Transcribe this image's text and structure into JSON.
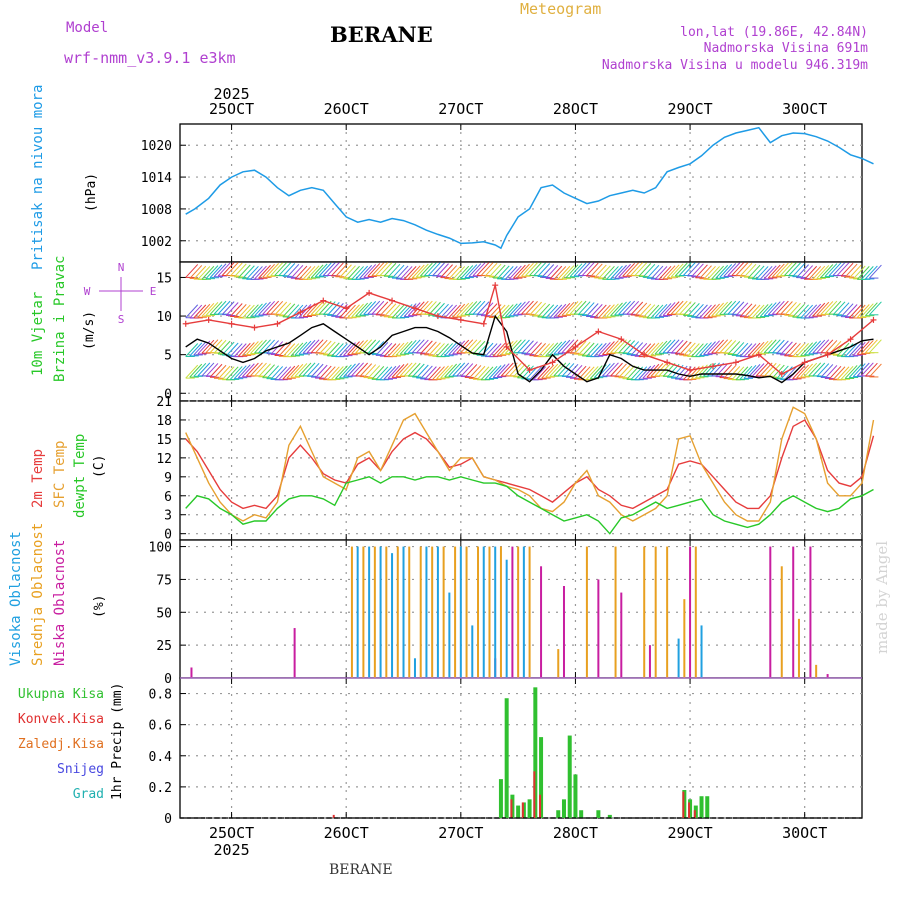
{
  "header": {
    "model_label": "Model",
    "model_name": "wrf-nmm_v3.9.1 e3km",
    "station": "BERANE",
    "title": "Meteogram",
    "lonlat": "lon,lat (19.86E, 42.84N)",
    "elev": "Nadmorska Visina 691m",
    "elev_model": "Nadmorska Visina u modelu 946.319m",
    "footer_station": "BERANE",
    "watermark": "made by Angel"
  },
  "colors": {
    "pressure": "#1e9be6",
    "temp2m": "#e63c3c",
    "sfc": "#e6a030",
    "dew": "#28c828",
    "high_cloud": "#20a0e0",
    "mid_cloud": "#e8a020",
    "low_cloud": "#c81ea0",
    "total_precip": "#30c030",
    "conv_precip": "#e03030",
    "frz_precip": "#e07020",
    "snow": "#4848e0",
    "hail": "#20b0b0",
    "label_purple": "#b040d0",
    "label_gold": "#e0b040"
  },
  "chart_data": [
    {
      "id": "pressure",
      "type": "line",
      "title": "Pritisak na nivou mora",
      "ylabel": "(hPa)",
      "ylim": [
        998,
        1024
      ],
      "yticks": [
        1002,
        1008,
        1014,
        1020
      ],
      "x_days": [
        25,
        26,
        27,
        28,
        29,
        30
      ],
      "x_tick_labels_top": [
        "25OCT",
        "26OCT",
        "27OCT",
        "28OCT",
        "29OCT",
        "30OCT"
      ],
      "year": "2025",
      "series": [
        {
          "name": "MSLP",
          "x": [
            0,
            0.08,
            0.2,
            0.3,
            0.4,
            0.5,
            0.6,
            0.7,
            0.8,
            0.9,
            1.0,
            1.1,
            1.2,
            1.3,
            1.4,
            1.5,
            1.6,
            1.7,
            1.8,
            1.9,
            2.0,
            2.1,
            2.2,
            2.3,
            2.4,
            2.5,
            2.6,
            2.7,
            2.75,
            2.8,
            2.9,
            3.0,
            3.1,
            3.2,
            3.3,
            3.4,
            3.5,
            3.6,
            3.7,
            3.8,
            3.9,
            4.0,
            4.1,
            4.2,
            4.3,
            4.4,
            4.5,
            4.6,
            4.7,
            4.8,
            4.9,
            5.0,
            5.1,
            5.2,
            5.3,
            5.4,
            5.5,
            5.6,
            5.7,
            5.8,
            5.9,
            6.0
          ],
          "values": [
            1007,
            1008,
            1010,
            1012.5,
            1014,
            1015,
            1015.3,
            1014,
            1012,
            1010.5,
            1011.5,
            1012,
            1011.5,
            1009,
            1006.5,
            1005.5,
            1006,
            1005.5,
            1006.2,
            1005.8,
            1005,
            1004,
            1003.2,
            1002.5,
            1001.5,
            1001.6,
            1001.8,
            1001.2,
            1000.6,
            1003,
            1006.5,
            1008,
            1012,
            1012.5,
            1011,
            1010,
            1009,
            1009.5,
            1010.5,
            1011,
            1011.5,
            1011,
            1012,
            1015,
            1015.8,
            1016.5,
            1018,
            1020,
            1021.5,
            1022.3,
            1022.8,
            1023.3,
            1020.5,
            1021.8,
            1022.3,
            1022.2,
            1021.6,
            1020.8,
            1019.6,
            1018.2,
            1017.5,
            1016.5
          ]
        }
      ]
    },
    {
      "id": "wind",
      "type": "line",
      "title_lines": [
        "10m Vjetar",
        "Brzina i Pravac"
      ],
      "ylabel": "(m/s)",
      "compass": [
        "N",
        "W",
        "E",
        "S"
      ],
      "ylim": [
        -1,
        17
      ],
      "yticks": [
        0,
        5,
        10,
        15
      ],
      "series": [
        {
          "name": "speed",
          "color": "#000000",
          "x": [
            0,
            0.1,
            0.2,
            0.3,
            0.4,
            0.5,
            0.6,
            0.7,
            0.8,
            0.9,
            1.0,
            1.1,
            1.2,
            1.3,
            1.4,
            1.5,
            1.6,
            1.7,
            1.8,
            1.9,
            2.0,
            2.1,
            2.2,
            2.3,
            2.4,
            2.5,
            2.6,
            2.7,
            2.8,
            2.9,
            3.0,
            3.1,
            3.2,
            3.3,
            3.4,
            3.5,
            3.6,
            3.7,
            3.8,
            3.9,
            4.0,
            4.1,
            4.2,
            4.3,
            4.4,
            4.5,
            4.6,
            4.7,
            4.8,
            4.9,
            5.0,
            5.1,
            5.2,
            5.3,
            5.4,
            5.5,
            5.6,
            5.7,
            5.8,
            5.9,
            6.0
          ],
          "values": [
            6,
            7,
            6.5,
            5.5,
            4.5,
            4,
            4.5,
            5.5,
            6,
            6.5,
            7.5,
            8.5,
            9,
            8,
            7,
            6,
            5,
            6,
            7.5,
            8,
            8.5,
            8.5,
            8,
            7.2,
            6.2,
            5.2,
            5,
            10,
            8,
            2.5,
            1.5,
            3,
            5,
            3.5,
            2.5,
            1.5,
            2,
            5,
            4.5,
            3.5,
            3,
            3,
            3,
            2.5,
            2.2,
            2.5,
            2.5,
            2.5,
            2.5,
            2.3,
            2,
            2.2,
            1.4,
            2.5,
            4,
            4.5,
            5,
            5.5,
            6,
            6.8,
            7
          ]
        },
        {
          "name": "gust",
          "color": "#e63c3c",
          "x": [
            0,
            0.2,
            0.4,
            0.6,
            0.8,
            1.0,
            1.2,
            1.4,
            1.6,
            1.8,
            2.0,
            2.2,
            2.4,
            2.6,
            2.7,
            2.8,
            3.0,
            3.2,
            3.4,
            3.6,
            3.8,
            4.0,
            4.2,
            4.4,
            4.6,
            4.8,
            5.0,
            5.2,
            5.4,
            5.6,
            5.8,
            6.0
          ],
          "values": [
            9,
            9.5,
            9,
            8.5,
            9,
            10.5,
            12,
            11,
            13,
            12,
            11,
            10,
            9.5,
            9,
            14,
            6,
            3,
            4,
            6,
            8,
            7,
            5,
            4,
            3,
            3.5,
            4,
            5,
            2.5,
            4,
            5,
            7,
            9.5
          ]
        }
      ]
    },
    {
      "id": "temperature",
      "type": "line",
      "title_lines": [
        "2m Temp",
        "SFC Temp",
        "dewpt Temp"
      ],
      "ylabel": "(C)",
      "ylim": [
        -1,
        21
      ],
      "yticks": [
        0,
        3,
        6,
        9,
        12,
        15,
        18,
        21
      ],
      "series": [
        {
          "name": "2m Temp",
          "x": [
            0,
            0.1,
            0.2,
            0.3,
            0.4,
            0.5,
            0.6,
            0.7,
            0.8,
            0.9,
            1.0,
            1.1,
            1.2,
            1.3,
            1.4,
            1.5,
            1.6,
            1.7,
            1.8,
            1.9,
            2.0,
            2.1,
            2.2,
            2.3,
            2.4,
            2.5,
            2.6,
            2.7,
            2.8,
            2.9,
            3.0,
            3.1,
            3.2,
            3.3,
            3.4,
            3.5,
            3.6,
            3.7,
            3.8,
            3.9,
            4.0,
            4.1,
            4.2,
            4.3,
            4.4,
            4.5,
            4.6,
            4.7,
            4.8,
            4.9,
            5.0,
            5.1,
            5.2,
            5.3,
            5.4,
            5.5,
            5.6,
            5.7,
            5.8,
            5.9,
            6.0
          ],
          "values": [
            15,
            13,
            10,
            7,
            5,
            4,
            4.5,
            4,
            6,
            12,
            14,
            12,
            9.5,
            8.5,
            8,
            11,
            12,
            10,
            13,
            15,
            16,
            15,
            13,
            10.5,
            11,
            12,
            9,
            8.5,
            8,
            7.5,
            7,
            6,
            5,
            6.5,
            8,
            9,
            7,
            6,
            4.5,
            4,
            5,
            6,
            7,
            11,
            11.5,
            11,
            9,
            7,
            5,
            4,
            4,
            6,
            12,
            17,
            18,
            15,
            10,
            8,
            7.5,
            9,
            15.5
          ]
        },
        {
          "name": "SFC Temp",
          "x": [
            0,
            0.1,
            0.2,
            0.3,
            0.4,
            0.5,
            0.6,
            0.7,
            0.8,
            0.9,
            1.0,
            1.1,
            1.2,
            1.3,
            1.4,
            1.5,
            1.6,
            1.7,
            1.8,
            1.9,
            2.0,
            2.1,
            2.2,
            2.3,
            2.4,
            2.5,
            2.6,
            2.7,
            2.8,
            2.9,
            3.0,
            3.1,
            3.2,
            3.3,
            3.4,
            3.5,
            3.6,
            3.7,
            3.8,
            3.9,
            4.0,
            4.1,
            4.2,
            4.3,
            4.4,
            4.5,
            4.6,
            4.7,
            4.8,
            4.9,
            5.0,
            5.1,
            5.2,
            5.3,
            5.4,
            5.5,
            5.6,
            5.7,
            5.8,
            5.9,
            6.0
          ],
          "values": [
            16,
            12,
            8,
            5,
            3,
            2,
            3,
            2.5,
            5,
            14,
            17,
            13,
            9,
            8,
            7,
            12,
            13,
            10,
            14,
            18,
            19,
            16,
            13,
            10,
            12,
            12,
            9,
            8.5,
            7.5,
            7,
            6,
            4,
            3.5,
            5,
            8,
            10,
            6,
            5,
            3,
            2,
            3,
            4,
            6,
            15,
            15.5,
            11,
            8,
            5,
            3,
            2,
            2,
            5,
            15,
            20,
            19,
            15,
            8,
            6,
            6,
            8,
            18
          ]
        },
        {
          "name": "dewpt Temp",
          "x": [
            0,
            0.1,
            0.2,
            0.3,
            0.4,
            0.5,
            0.6,
            0.7,
            0.8,
            0.9,
            1.0,
            1.1,
            1.2,
            1.3,
            1.4,
            1.5,
            1.6,
            1.7,
            1.8,
            1.9,
            2.0,
            2.1,
            2.2,
            2.3,
            2.4,
            2.5,
            2.6,
            2.7,
            2.8,
            2.9,
            3.0,
            3.1,
            3.2,
            3.3,
            3.4,
            3.5,
            3.6,
            3.7,
            3.8,
            3.9,
            4.0,
            4.1,
            4.2,
            4.3,
            4.4,
            4.5,
            4.6,
            4.7,
            4.8,
            4.9,
            5.0,
            5.1,
            5.2,
            5.3,
            5.4,
            5.5,
            5.6,
            5.7,
            5.8,
            5.9,
            6.0
          ],
          "values": [
            4,
            6,
            5.5,
            4,
            3,
            1.5,
            2,
            2,
            4,
            5.5,
            6,
            6,
            5.5,
            4.5,
            8,
            8.5,
            9,
            8,
            9,
            9,
            8.5,
            9,
            9,
            8.5,
            9,
            8.5,
            8,
            8,
            7.5,
            6,
            5,
            4,
            3,
            2,
            2.5,
            3,
            2,
            0,
            2.5,
            3,
            4,
            5,
            4,
            4.5,
            5,
            5.5,
            3,
            2,
            1.5,
            1,
            1.5,
            3,
            5,
            6,
            5,
            4,
            3.5,
            4,
            5.5,
            6,
            7
          ]
        }
      ]
    },
    {
      "id": "clouds",
      "type": "bar",
      "title_lines": [
        "Visoka Oblacnost",
        "Srednja Oblacnost",
        "Niska Oblacnost"
      ],
      "ylabel": "(%)",
      "ylim": [
        0,
        105
      ],
      "yticks": [
        0,
        25,
        50,
        75,
        100
      ],
      "series": [
        {
          "name": "Niska Oblacnost",
          "x": [
            0.05,
            0.95,
            2.7,
            2.85,
            3.1,
            3.3,
            3.6,
            3.8,
            4.05,
            4.4,
            5.1,
            5.3,
            5.45,
            5.6,
            6.0
          ],
          "values": [
            8,
            38,
            15,
            100,
            85,
            70,
            75,
            65,
            25,
            100,
            100,
            100,
            100,
            3,
            0
          ]
        },
        {
          "name": "Srednja Oblacnost",
          "x": [
            1.45,
            1.55,
            1.65,
            1.75,
            1.85,
            1.95,
            2.05,
            2.15,
            2.25,
            2.35,
            2.45,
            2.55,
            2.65,
            2.75,
            2.9,
            3.0,
            3.25,
            3.5,
            3.75,
            4.0,
            4.1,
            4.2,
            4.35,
            4.45,
            5.2,
            5.35,
            5.5
          ],
          "values": [
            100,
            100,
            100,
            100,
            100,
            100,
            100,
            100,
            100,
            100,
            100,
            100,
            100,
            100,
            100,
            100,
            22,
            100,
            100,
            100,
            100,
            100,
            60,
            100,
            85,
            45,
            10
          ]
        },
        {
          "name": "Visoka Oblacnost",
          "x": [
            1.5,
            1.6,
            1.7,
            1.8,
            1.9,
            2.0,
            2.1,
            2.2,
            2.3,
            2.4,
            2.5,
            2.6,
            2.7,
            2.8,
            2.95,
            4.3,
            4.5
          ],
          "values": [
            100,
            100,
            100,
            95,
            100,
            15,
            100,
            100,
            65,
            100,
            40,
            100,
            100,
            90,
            100,
            30,
            40
          ]
        }
      ]
    },
    {
      "id": "precip",
      "type": "bar",
      "title_lines": [
        "Ukupna Kisa",
        "Konvek.Kisa",
        "Zaledj.Kisa",
        "Snijeg",
        "Grad"
      ],
      "ylabel": "1hr Precip (mm)",
      "ylim": [
        0,
        0.9
      ],
      "yticks": [
        0,
        0.2,
        0.4,
        0.6,
        0.8
      ],
      "x_tick_labels_bottom": [
        "25OCT",
        "26OCT",
        "27OCT",
        "28OCT",
        "29OCT",
        "30OCT"
      ],
      "year": "2025",
      "series": [
        {
          "name": "Ukupna Kisa",
          "x": [
            2.75,
            2.8,
            2.85,
            2.9,
            2.95,
            3.0,
            3.05,
            3.1,
            3.25,
            3.3,
            3.35,
            3.4,
            3.45,
            3.6,
            3.7,
            4.35,
            4.4,
            4.45,
            4.5,
            4.55
          ],
          "values": [
            0.25,
            0.77,
            0.15,
            0.08,
            0.1,
            0.12,
            0.84,
            0.52,
            0.05,
            0.12,
            0.53,
            0.28,
            0.05,
            0.05,
            0.02,
            0.18,
            0.12,
            0.08,
            0.14,
            0.14
          ]
        },
        {
          "name": "Konvek.Kisa",
          "x": [
            1.3,
            2.85,
            2.95,
            3.05,
            3.1,
            4.35,
            4.4,
            4.45
          ],
          "values": [
            0.02,
            0.12,
            0.1,
            0.3,
            0.15,
            0.17,
            0.1,
            0.05
          ]
        }
      ]
    }
  ]
}
